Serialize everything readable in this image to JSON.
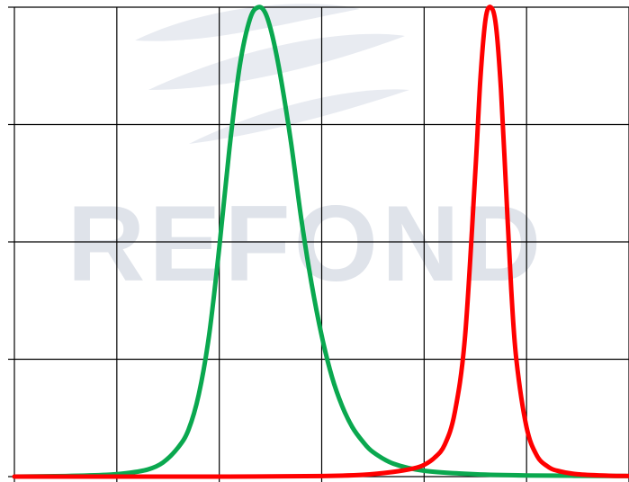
{
  "watermark": {
    "text": "REFOND",
    "color": "#dfe3ea"
  },
  "chart_data": {
    "type": "line",
    "title": "",
    "xlabel": "",
    "ylabel": "",
    "xlim": [
      0,
      6
    ],
    "ylim": [
      0,
      4
    ],
    "x_gridlines": [
      0,
      1,
      2,
      3,
      4,
      5,
      6
    ],
    "y_gridlines": [
      0,
      1,
      2,
      3,
      4
    ],
    "grid": true,
    "legend": "none",
    "series": [
      {
        "color": "#0aa84f",
        "x": [
          0.0,
          0.5,
          0.9,
          1.1,
          1.3,
          1.45,
          1.6,
          1.7,
          1.8,
          1.9,
          2.0,
          2.1,
          2.2,
          2.3,
          2.38,
          2.45,
          2.52,
          2.6,
          2.7,
          2.8,
          2.9,
          3.0,
          3.1,
          3.2,
          3.3,
          3.4,
          3.5,
          3.7,
          4.0,
          4.5,
          5.0,
          6.0
        ],
        "y": [
          0.0,
          0.005,
          0.015,
          0.03,
          0.06,
          0.12,
          0.25,
          0.4,
          0.7,
          1.2,
          1.95,
          2.8,
          3.5,
          3.9,
          4.0,
          3.95,
          3.75,
          3.4,
          2.85,
          2.2,
          1.65,
          1.2,
          0.85,
          0.6,
          0.42,
          0.3,
          0.21,
          0.11,
          0.05,
          0.02,
          0.01,
          0.005
        ]
      },
      {
        "color": "#ff0000",
        "x": [
          0.0,
          1.0,
          2.0,
          3.0,
          3.4,
          3.7,
          3.9,
          4.0,
          4.1,
          4.2,
          4.3,
          4.4,
          4.5,
          4.55,
          4.6,
          4.65,
          4.7,
          4.75,
          4.8,
          4.85,
          4.9,
          5.0,
          5.1,
          5.2,
          5.3,
          5.5,
          5.8,
          6.0
        ],
        "y": [
          0.0,
          0.0,
          0.0,
          0.005,
          0.015,
          0.04,
          0.07,
          0.1,
          0.16,
          0.27,
          0.55,
          1.2,
          2.6,
          3.4,
          3.9,
          4.0,
          3.85,
          3.3,
          2.45,
          1.6,
          1.0,
          0.42,
          0.18,
          0.09,
          0.05,
          0.02,
          0.008,
          0.005
        ]
      }
    ]
  }
}
